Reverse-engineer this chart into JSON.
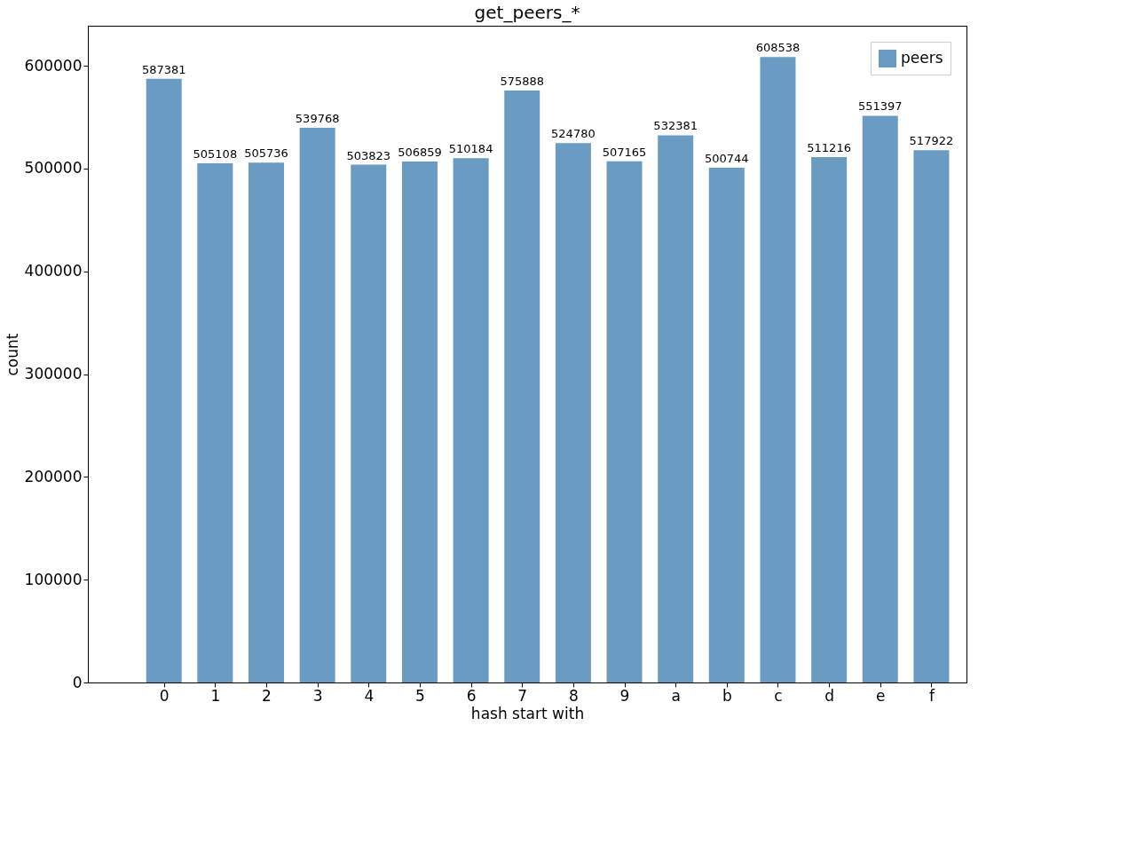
{
  "chart_data": {
    "type": "bar",
    "title": "get_peers_*",
    "xlabel": "hash start with",
    "ylabel": "count",
    "categories": [
      "0",
      "1",
      "2",
      "3",
      "4",
      "5",
      "6",
      "7",
      "8",
      "9",
      "a",
      "b",
      "c",
      "d",
      "e",
      "f"
    ],
    "series": [
      {
        "name": "peers",
        "color": "#6a9bc3",
        "values": [
          587381,
          505108,
          505736,
          539768,
          503823,
          506859,
          510184,
          575888,
          524780,
          507165,
          532381,
          500744,
          608538,
          511216,
          551397,
          517922
        ]
      }
    ],
    "ylim": [
      0,
      639000
    ],
    "yticks": [
      0,
      100000,
      200000,
      300000,
      400000,
      500000,
      600000
    ],
    "data_labels": true,
    "legend": "top right",
    "grid": false
  }
}
